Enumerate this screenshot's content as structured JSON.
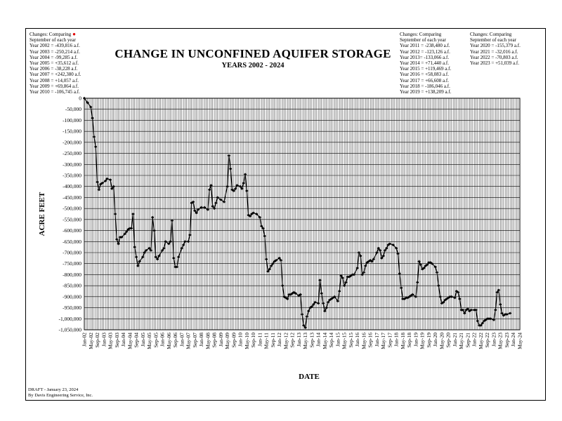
{
  "notes_left": {
    "heading": "Changes: Comparing",
    "subheading": "September of each year",
    "lines": [
      "Year 2002 = -439,816 a.f.",
      "Year 2003 = -250,214 a.f.",
      "Year 2004 =   -99,285 a.f.",
      "Year 2005 =   +35,612 a.f.",
      "Year 2006 =   -38,228 a.f.",
      "Year 2007 = +242,380 a.f.",
      "Year 2008 = +14,057 a.f.",
      "Year 2009 = +69,864 a.f.",
      "Year 2010 = -106,745 a.f."
    ]
  },
  "notes_middle": {
    "heading": "Changes: Comparing",
    "subheading": "September of each year",
    "lines": [
      "Year 2011 = -238,480 a.f.",
      "Year 2012 = -123,126 a.f.",
      "Year 2013= -133,066 a.f.",
      "Year 2014 = +71,440 a.f.",
      "Year 2015 = +119,469 a.f.",
      "Year 2016 = +58,083 a.f.",
      "Year 2017 = +66,608 a.f.",
      "Year 2018 = -186,046 a.f.",
      "Year 2019 = +138,209 a.f."
    ]
  },
  "notes_right": {
    "heading": "Changes: Comparing",
    "subheading": "September of each year",
    "lines": [
      "Year 2020 = -155,379 a.f.",
      "Year 2021 = -32,016 a.f.",
      "Year 2022 = -70,803 a.f.",
      "Year 2023 = +51,039 a.f."
    ]
  },
  "footer": {
    "draft": "DRAFT - January 23,  2024",
    "by": "By Davis Engineering Service, Inc."
  },
  "colors": {
    "line": "#000000",
    "grid": "#000000",
    "marker_note": "#e00000"
  },
  "chart_data": {
    "type": "line",
    "title": "CHANGE IN UNCONFINED AQUIFER STORAGE",
    "subtitle": "YEARS 2002 - 2024",
    "xlabel": "DATE",
    "ylabel": "ACRE FEET",
    "ylim": [
      -1050000,
      0
    ],
    "y_ticks": [
      0,
      -50000,
      -100000,
      -150000,
      -200000,
      -250000,
      -300000,
      -350000,
      -400000,
      -450000,
      -500000,
      -550000,
      -600000,
      -650000,
      -700000,
      -750000,
      -800000,
      -850000,
      -900000,
      -950000,
      -1000000,
      -1050000
    ],
    "y_tick_labels": [
      "0",
      "-50,000",
      "-100,000",
      "-150,000",
      "-200,000",
      "-250,000",
      "-300,000",
      "-350,000",
      "-400,000",
      "-450,000",
      "-500,000",
      "-550,000",
      "-600,000",
      "-650,000",
      "-700,000",
      "-750,000",
      "-800,000",
      "-850,000",
      "-900,000",
      "-950,000",
      "-1,000,000",
      "-1,050,000"
    ],
    "x_ticks": [
      "Jan-02",
      "May-02",
      "Sep-02",
      "Jan-03",
      "May-03",
      "Sep-03",
      "Jan-04",
      "May-04",
      "Sep-04",
      "Jan-05",
      "May-05",
      "Sep-05",
      "Jan-06",
      "May-06",
      "Sep-06",
      "Jan-07",
      "May-07",
      "Sep-07",
      "Jan-08",
      "May-08",
      "Sep-08",
      "Jan-09",
      "May-09",
      "Sep-09",
      "Jan-10",
      "May-10",
      "Sep-10",
      "Jan-11",
      "May-11",
      "Sep-11",
      "Jan-12",
      "May-12",
      "Sep-12",
      "Jan-13",
      "May-13",
      "Sep-13",
      "Jan-14",
      "May-14",
      "Sep-14",
      "Jan-15",
      "May-15",
      "Sep-15",
      "Jan-16",
      "May-16",
      "Sep-16",
      "Jan-17",
      "May-17",
      "Sep-17",
      "Jan-18",
      "May-18",
      "Sep-18",
      "Jan-19",
      "May-19",
      "Sep-19",
      "Jan-20",
      "May-20",
      "Sep-20",
      "Jan-21",
      "May-21",
      "Sep-21",
      "Jan-22",
      "May-22",
      "Sep-22",
      "Jan-23",
      "May-23",
      "Sep-23",
      "Jan-24",
      "May-24"
    ],
    "grid": true,
    "series": [
      {
        "marker": "diamond",
        "points": [
          [
            "Jan-02",
            0
          ],
          [
            "Mar-02",
            -20000
          ],
          [
            "May-02",
            -40000
          ],
          [
            "Jun-02",
            -90000
          ],
          [
            "Jul-02",
            -175000
          ],
          [
            "Aug-02",
            -220000
          ],
          [
            "Sep-02",
            -380000
          ],
          [
            "Oct-02",
            -415000
          ],
          [
            "Nov-02",
            -390000
          ],
          [
            "Dec-02",
            -385000
          ],
          [
            "Feb-03",
            -375000
          ],
          [
            "Mar-03",
            -365000
          ],
          [
            "May-03",
            -370000
          ],
          [
            "Jun-03",
            -410000
          ],
          [
            "Jul-03",
            -400000
          ],
          [
            "Aug-03",
            -525000
          ],
          [
            "Sep-03",
            -640000
          ],
          [
            "Oct-03",
            -660000
          ],
          [
            "Nov-03",
            -630000
          ],
          [
            "Dec-03",
            -630000
          ],
          [
            "Feb-04",
            -615000
          ],
          [
            "Mar-04",
            -605000
          ],
          [
            "Apr-04",
            -595000
          ],
          [
            "May-04",
            -590000
          ],
          [
            "Jun-04",
            -590000
          ],
          [
            "Jul-04",
            -525000
          ],
          [
            "Aug-04",
            -675000
          ],
          [
            "Sep-04",
            -720000
          ],
          [
            "Oct-04",
            -760000
          ],
          [
            "Nov-04",
            -740000
          ],
          [
            "Jan-05",
            -720000
          ],
          [
            "Feb-05",
            -700000
          ],
          [
            "Mar-05",
            -690000
          ],
          [
            "May-05",
            -680000
          ],
          [
            "Jun-05",
            -690000
          ],
          [
            "Jul-05",
            -540000
          ],
          [
            "Aug-05",
            -600000
          ],
          [
            "Sep-05",
            -720000
          ],
          [
            "Oct-05",
            -730000
          ],
          [
            "Nov-05",
            -715000
          ],
          [
            "Jan-06",
            -690000
          ],
          [
            "Feb-06",
            -680000
          ],
          [
            "Mar-06",
            -650000
          ],
          [
            "May-06",
            -660000
          ],
          [
            "Jun-06",
            -650000
          ],
          [
            "Jul-06",
            -555000
          ],
          [
            "Aug-06",
            -725000
          ],
          [
            "Sep-06",
            -765000
          ],
          [
            "Oct-06",
            -765000
          ],
          [
            "Nov-06",
            -720000
          ],
          [
            "Jan-07",
            -680000
          ],
          [
            "Feb-07",
            -665000
          ],
          [
            "Mar-07",
            -650000
          ],
          [
            "May-07",
            -650000
          ],
          [
            "Jun-07",
            -620000
          ],
          [
            "Jul-07",
            -475000
          ],
          [
            "Aug-07",
            -470000
          ],
          [
            "Sep-07",
            -510000
          ],
          [
            "Oct-07",
            -520000
          ],
          [
            "Nov-07",
            -505000
          ],
          [
            "Jan-08",
            -495000
          ],
          [
            "Mar-08",
            -495000
          ],
          [
            "May-08",
            -505000
          ],
          [
            "Jun-08",
            -415000
          ],
          [
            "Jul-08",
            -395000
          ],
          [
            "Aug-08",
            -490000
          ],
          [
            "Sep-08",
            -500000
          ],
          [
            "Oct-08",
            -475000
          ],
          [
            "Nov-08",
            -450000
          ],
          [
            "Jan-09",
            -460000
          ],
          [
            "Mar-09",
            -470000
          ],
          [
            "May-09",
            -400000
          ],
          [
            "Jun-09",
            -260000
          ],
          [
            "Jul-09",
            -320000
          ],
          [
            "Aug-09",
            -415000
          ],
          [
            "Sep-09",
            -420000
          ],
          [
            "Oct-09",
            -410000
          ],
          [
            "Nov-09",
            -395000
          ],
          [
            "Jan-10",
            -400000
          ],
          [
            "Feb-10",
            -410000
          ],
          [
            "Mar-10",
            -385000
          ],
          [
            "Apr-10",
            -345000
          ],
          [
            "May-10",
            -420000
          ],
          [
            "Jun-10",
            -530000
          ],
          [
            "Jul-10",
            -535000
          ],
          [
            "Aug-10",
            -525000
          ],
          [
            "Sep-10",
            -520000
          ],
          [
            "Nov-10",
            -525000
          ],
          [
            "Jan-11",
            -540000
          ],
          [
            "Feb-11",
            -580000
          ],
          [
            "Mar-11",
            -590000
          ],
          [
            "Apr-11",
            -625000
          ],
          [
            "May-11",
            -730000
          ],
          [
            "Jun-11",
            -785000
          ],
          [
            "Jul-11",
            -775000
          ],
          [
            "Aug-11",
            -760000
          ],
          [
            "Sep-11",
            -750000
          ],
          [
            "Oct-11",
            -740000
          ],
          [
            "Nov-11",
            -735000
          ],
          [
            "Jan-12",
            -725000
          ],
          [
            "Feb-12",
            -735000
          ],
          [
            "Mar-12",
            -850000
          ],
          [
            "Apr-12",
            -900000
          ],
          [
            "May-12",
            -905000
          ],
          [
            "Jun-12",
            -910000
          ],
          [
            "Jul-12",
            -890000
          ],
          [
            "Aug-12",
            -890000
          ],
          [
            "Sep-12",
            -885000
          ],
          [
            "Oct-12",
            -880000
          ],
          [
            "Nov-12",
            -885000
          ],
          [
            "Jan-13",
            -895000
          ],
          [
            "Feb-13",
            -890000
          ],
          [
            "Mar-13",
            -980000
          ],
          [
            "Apr-13",
            -1030000
          ],
          [
            "May-13",
            -1040000
          ],
          [
            "Jun-13",
            -990000
          ],
          [
            "Jul-13",
            -965000
          ],
          [
            "Aug-13",
            -950000
          ],
          [
            "Sep-13",
            -945000
          ],
          [
            "Oct-13",
            -935000
          ],
          [
            "Nov-13",
            -925000
          ],
          [
            "Jan-14",
            -930000
          ],
          [
            "Feb-14",
            -825000
          ],
          [
            "Mar-14",
            -885000
          ],
          [
            "Apr-14",
            -930000
          ],
          [
            "May-14",
            -965000
          ],
          [
            "Jun-14",
            -950000
          ],
          [
            "Jul-14",
            -925000
          ],
          [
            "Aug-14",
            -915000
          ],
          [
            "Sep-14",
            -910000
          ],
          [
            "Oct-14",
            -905000
          ],
          [
            "Nov-14",
            -900000
          ],
          [
            "Jan-15",
            -920000
          ],
          [
            "Feb-15",
            -875000
          ],
          [
            "Mar-15",
            -805000
          ],
          [
            "Apr-15",
            -815000
          ],
          [
            "May-15",
            -850000
          ],
          [
            "Jun-15",
            -835000
          ],
          [
            "Jul-15",
            -810000
          ],
          [
            "Aug-15",
            -810000
          ],
          [
            "Sep-15",
            -805000
          ],
          [
            "Oct-15",
            -800000
          ],
          [
            "Nov-15",
            -800000
          ],
          [
            "Jan-16",
            -770000
          ],
          [
            "Feb-16",
            -700000
          ],
          [
            "Mar-16",
            -715000
          ],
          [
            "Apr-16",
            -800000
          ],
          [
            "May-16",
            -790000
          ],
          [
            "Jun-16",
            -760000
          ],
          [
            "Jul-16",
            -745000
          ],
          [
            "Aug-16",
            -740000
          ],
          [
            "Sep-16",
            -735000
          ],
          [
            "Oct-16",
            -740000
          ],
          [
            "Nov-16",
            -730000
          ],
          [
            "Jan-17",
            -700000
          ],
          [
            "Feb-17",
            -680000
          ],
          [
            "Mar-17",
            -690000
          ],
          [
            "Apr-17",
            -725000
          ],
          [
            "May-17",
            -715000
          ],
          [
            "Jun-17",
            -690000
          ],
          [
            "Jul-17",
            -680000
          ],
          [
            "Aug-17",
            -665000
          ],
          [
            "Sep-17",
            -660000
          ],
          [
            "Nov-17",
            -665000
          ],
          [
            "Jan-18",
            -680000
          ],
          [
            "Feb-18",
            -705000
          ],
          [
            "Mar-18",
            -795000
          ],
          [
            "Apr-18",
            -860000
          ],
          [
            "May-18",
            -910000
          ],
          [
            "Jun-18",
            -910000
          ],
          [
            "Jul-18",
            -905000
          ],
          [
            "Aug-18",
            -905000
          ],
          [
            "Sep-18",
            -900000
          ],
          [
            "Oct-18",
            -895000
          ],
          [
            "Nov-18",
            -890000
          ],
          [
            "Jan-19",
            -900000
          ],
          [
            "Feb-19",
            -835000
          ],
          [
            "Mar-19",
            -740000
          ],
          [
            "Apr-19",
            -755000
          ],
          [
            "May-19",
            -775000
          ],
          [
            "Jun-19",
            -770000
          ],
          [
            "Jul-19",
            -760000
          ],
          [
            "Aug-19",
            -755000
          ],
          [
            "Sep-19",
            -745000
          ],
          [
            "Oct-19",
            -745000
          ],
          [
            "Nov-19",
            -750000
          ],
          [
            "Jan-20",
            -765000
          ],
          [
            "Feb-20",
            -790000
          ],
          [
            "Mar-20",
            -850000
          ],
          [
            "Apr-20",
            -900000
          ],
          [
            "May-20",
            -930000
          ],
          [
            "Jun-20",
            -925000
          ],
          [
            "Jul-20",
            -915000
          ],
          [
            "Aug-20",
            -910000
          ],
          [
            "Sep-20",
            -905000
          ],
          [
            "Oct-20",
            -900000
          ],
          [
            "Nov-20",
            -900000
          ],
          [
            "Jan-21",
            -905000
          ],
          [
            "Feb-21",
            -875000
          ],
          [
            "Mar-21",
            -880000
          ],
          [
            "Apr-21",
            -910000
          ],
          [
            "May-21",
            -960000
          ],
          [
            "Jun-21",
            -960000
          ],
          [
            "Jul-21",
            -975000
          ],
          [
            "Aug-21",
            -960000
          ],
          [
            "Sep-21",
            -955000
          ],
          [
            "Oct-21",
            -965000
          ],
          [
            "Nov-21",
            -960000
          ],
          [
            "Jan-22",
            -960000
          ],
          [
            "Feb-22",
            -960000
          ],
          [
            "Mar-22",
            -1010000
          ],
          [
            "Apr-22",
            -1030000
          ],
          [
            "May-22",
            -1030000
          ],
          [
            "Jun-22",
            -1020000
          ],
          [
            "Jul-22",
            -1010000
          ],
          [
            "Aug-22",
            -1005000
          ],
          [
            "Sep-22",
            -1000000
          ],
          [
            "Oct-22",
            -1000000
          ],
          [
            "Nov-22",
            -1000000
          ],
          [
            "Jan-23",
            -1005000
          ],
          [
            "Feb-23",
            -960000
          ],
          [
            "Mar-23",
            -880000
          ],
          [
            "Apr-23",
            -870000
          ],
          [
            "May-23",
            -935000
          ],
          [
            "Jun-23",
            -975000
          ],
          [
            "Jul-23",
            -985000
          ],
          [
            "Aug-23",
            -980000
          ],
          [
            "Sep-23",
            -980000
          ],
          [
            "Nov-23",
            -975000
          ]
        ]
      }
    ]
  }
}
